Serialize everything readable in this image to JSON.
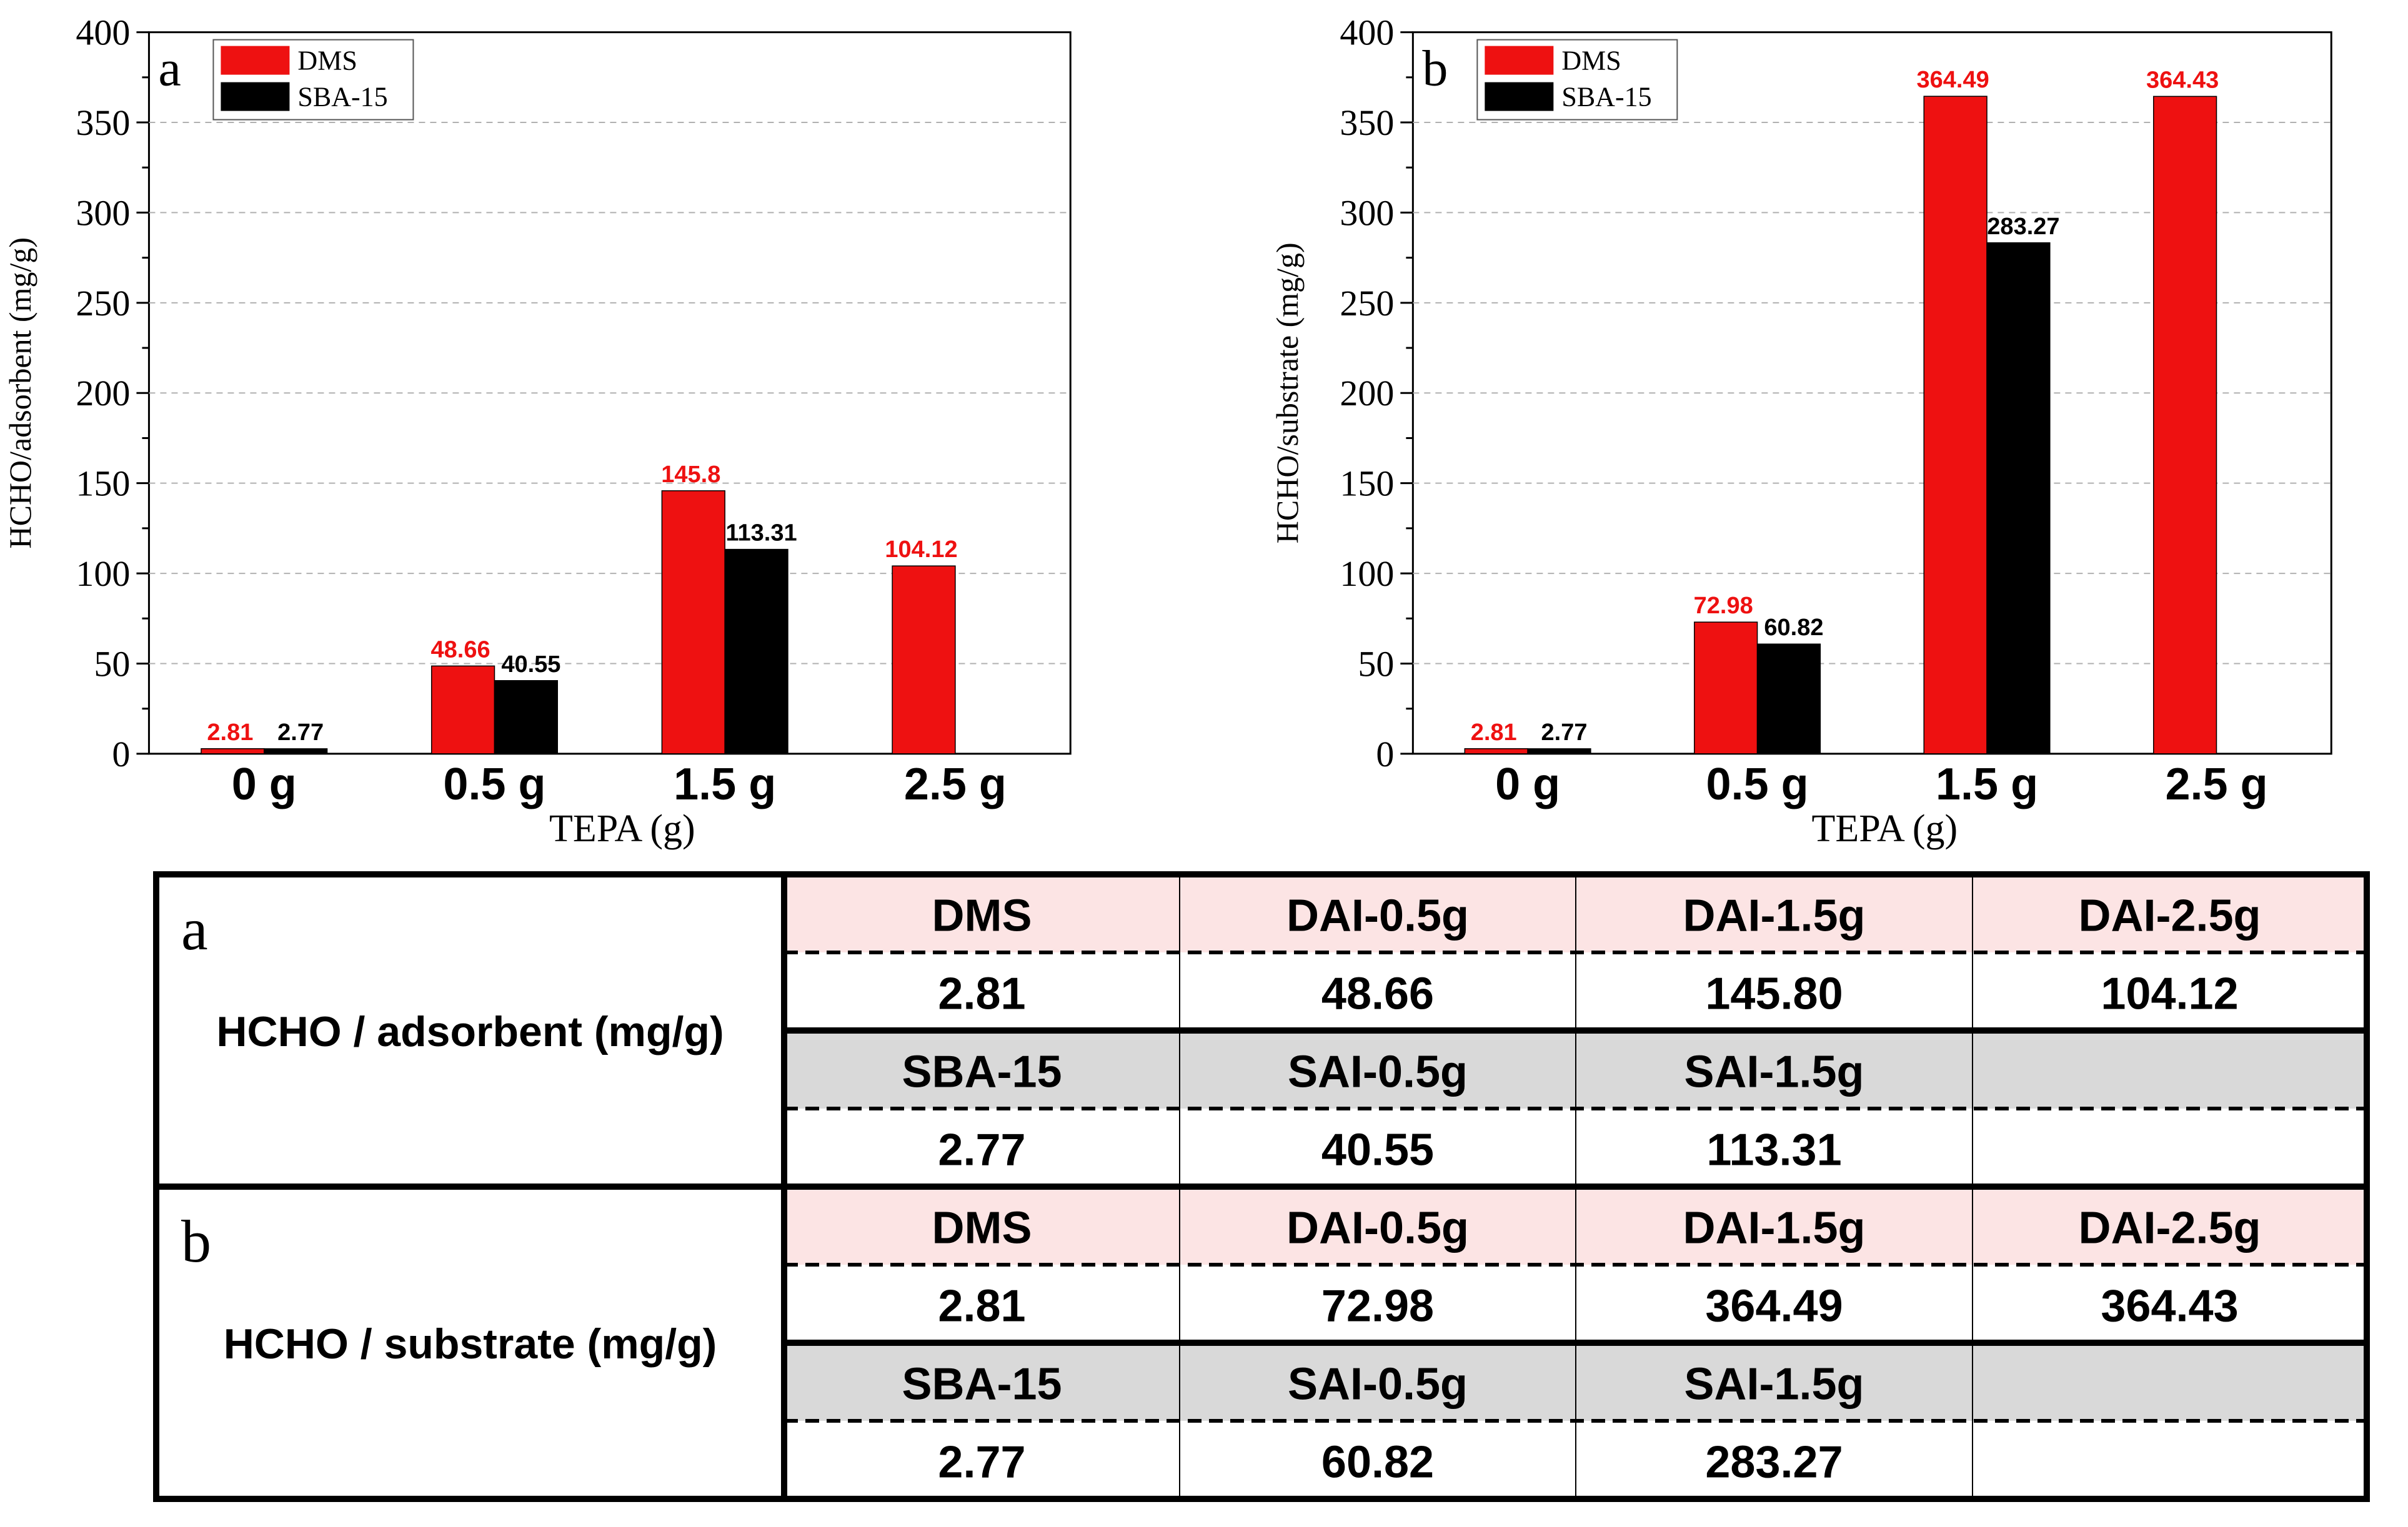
{
  "chart_data": [
    {
      "type": "bar",
      "panel_label": "a",
      "xlabel": "TEPA (g)",
      "ylabel": "HCHO/adsorbent (mg/g)",
      "ylim": [
        0,
        400
      ],
      "yticks": [
        0,
        50,
        100,
        150,
        200,
        250,
        300,
        350,
        400
      ],
      "categories": [
        "0 g",
        "0.5 g",
        "1.5 g",
        "2.5 g"
      ],
      "legend_position": "top-left",
      "grid": "horizontal dashed",
      "series": [
        {
          "name": "DMS",
          "color": "#ee1111",
          "label_color": "#ee1111",
          "values": [
            2.81,
            48.66,
            145.8,
            104.12
          ],
          "labels": [
            "2.81",
            "48.66",
            "145.8",
            "104.12"
          ]
        },
        {
          "name": "SBA-15",
          "color": "#000000",
          "label_color": "#000000",
          "values": [
            2.77,
            40.55,
            113.31,
            null
          ],
          "labels": [
            "2.77",
            "40.55",
            "113.31",
            null
          ]
        }
      ]
    },
    {
      "type": "bar",
      "panel_label": "b",
      "xlabel": "TEPA (g)",
      "ylabel": "HCHO/substrate (mg/g)",
      "ylim": [
        0,
        400
      ],
      "yticks": [
        0,
        50,
        100,
        150,
        200,
        250,
        300,
        350,
        400
      ],
      "categories": [
        "0 g",
        "0.5 g",
        "1.5 g",
        "2.5 g"
      ],
      "legend_position": "top-left",
      "grid": "horizontal dashed",
      "series": [
        {
          "name": "DMS",
          "color": "#ee1111",
          "label_color": "#ee1111",
          "values": [
            2.81,
            72.98,
            364.49,
            364.43
          ],
          "labels": [
            "2.81",
            "72.98",
            "364.49",
            "364.43"
          ]
        },
        {
          "name": "SBA-15",
          "color": "#000000",
          "label_color": "#000000",
          "values": [
            2.77,
            60.82,
            283.27,
            null
          ],
          "labels": [
            "2.77",
            "60.82",
            "283.27",
            null
          ]
        }
      ]
    }
  ],
  "table": {
    "sections": [
      {
        "letter": "a",
        "title": "HCHO / adsorbent (mg/g)",
        "rows": [
          {
            "kind": "header",
            "color": "#fce4e4",
            "cells": [
              "DMS",
              "DAI-0.5g",
              "DAI-1.5g",
              "DAI-2.5g"
            ]
          },
          {
            "kind": "value",
            "cells": [
              "2.81",
              "48.66",
              "145.80",
              "104.12"
            ]
          },
          {
            "kind": "header",
            "color": "#d9d9d9",
            "cells": [
              "SBA-15",
              "SAI-0.5g",
              "SAI-1.5g",
              ""
            ]
          },
          {
            "kind": "value",
            "cells": [
              "2.77",
              "40.55",
              "113.31",
              ""
            ]
          }
        ]
      },
      {
        "letter": "b",
        "title": "HCHO / substrate (mg/g)",
        "rows": [
          {
            "kind": "header",
            "color": "#fce4e4",
            "cells": [
              "DMS",
              "DAI-0.5g",
              "DAI-1.5g",
              "DAI-2.5g"
            ]
          },
          {
            "kind": "value",
            "cells": [
              "2.81",
              "72.98",
              "364.49",
              "364.43"
            ]
          },
          {
            "kind": "header",
            "color": "#d9d9d9",
            "cells": [
              "SBA-15",
              "SAI-0.5g",
              "SAI-1.5g",
              ""
            ]
          },
          {
            "kind": "value",
            "cells": [
              "2.77",
              "60.82",
              "283.27",
              ""
            ]
          }
        ]
      }
    ]
  }
}
